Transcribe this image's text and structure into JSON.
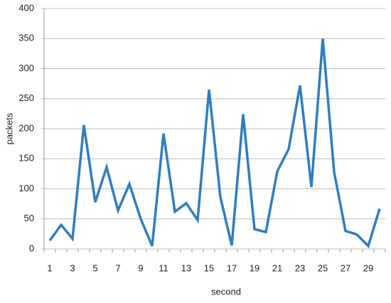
{
  "chart_data": {
    "type": "line",
    "categories": [
      1,
      null,
      3,
      null,
      5,
      null,
      7,
      null,
      9,
      null,
      11,
      null,
      13,
      null,
      15,
      null,
      17,
      null,
      19,
      null,
      21,
      null,
      23,
      null,
      25,
      null,
      27,
      null,
      29,
      null
    ],
    "series": [
      {
        "color": "#2e7ebf",
        "values": [
          14,
          40,
          17,
          206,
          78,
          136,
          64,
          108,
          50,
          5,
          192,
          62,
          76,
          48,
          265,
          86,
          6,
          224,
          33,
          28,
          129,
          166,
          272,
          103,
          350,
          128,
          30,
          24,
          5,
          67
        ]
      }
    ],
    "ylim": [
      0,
      400
    ],
    "yticks": [
      0,
      50,
      100,
      150,
      200,
      250,
      300,
      350,
      400
    ],
    "xlabel": "second",
    "ylabel": "packets",
    "grid": true
  }
}
